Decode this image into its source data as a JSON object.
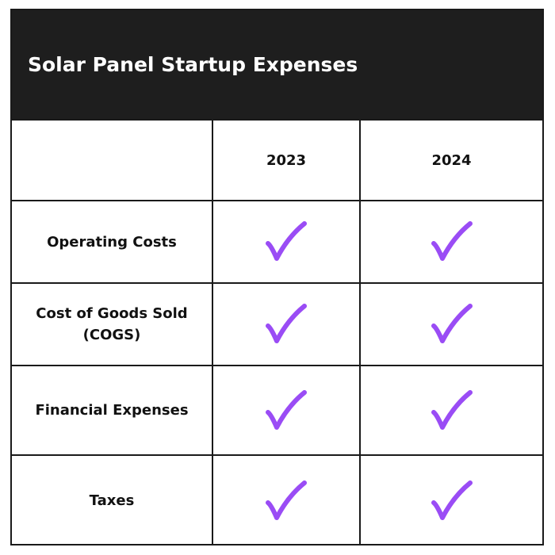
{
  "header": {
    "title": "Solar Panel Startup Expenses"
  },
  "table": {
    "columns": [
      "2023",
      "2024"
    ],
    "rows": [
      "Operating Costs",
      "Cost of Goods Sold (COGS)",
      "Financial Expenses",
      "Taxes"
    ]
  }
}
